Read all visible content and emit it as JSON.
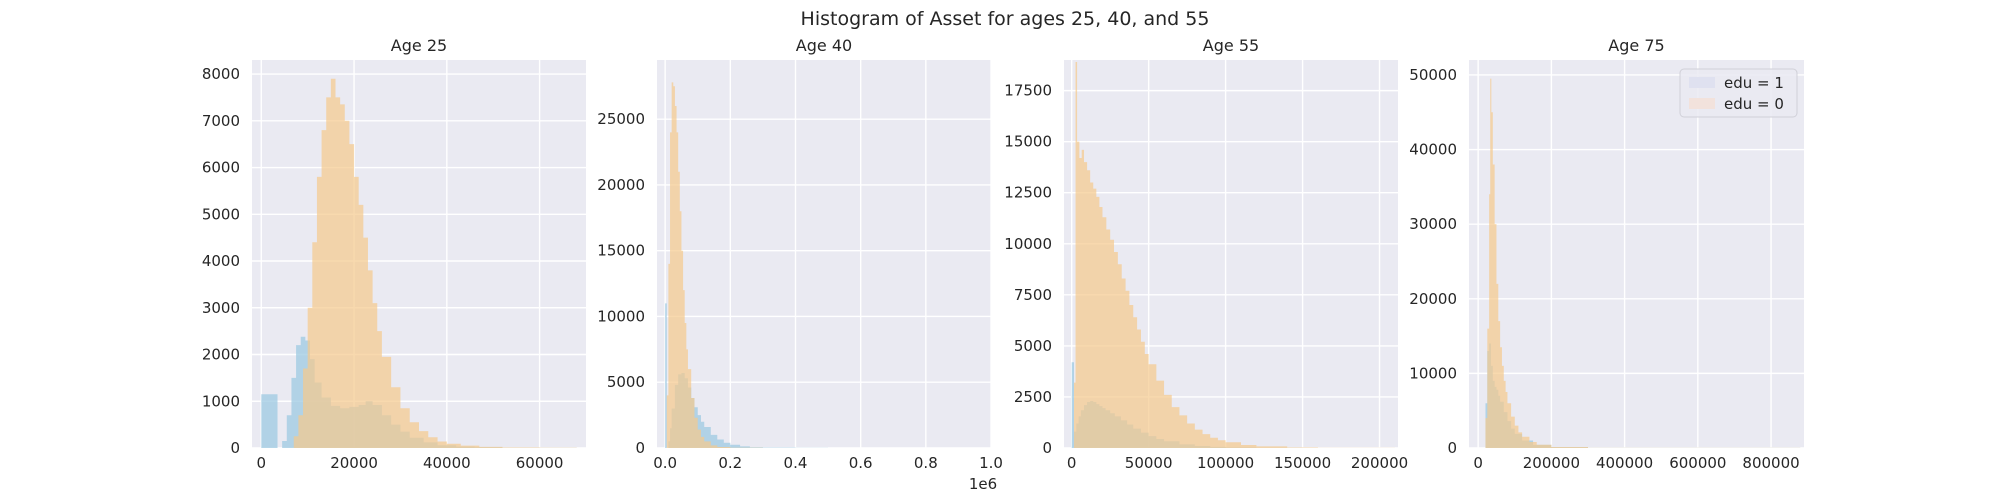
{
  "figure": {
    "title": "Histogram of Asset for ages 25, 40, and 55",
    "colors": {
      "background": "#eaeaf2",
      "grid": "#ffffff",
      "edu1": "#9ecae1",
      "edu0": "#f5c98b",
      "overlap": "#b9b98c",
      "legend_edu1_swatch": "#dfe1f0",
      "legend_edu0_swatch": "#f2e2dc"
    }
  },
  "chart_data": [
    {
      "type": "histogram",
      "title": "Age 25",
      "xlim": [
        -2000,
        70000
      ],
      "ylim": [
        0,
        8300
      ],
      "xticks": [
        0,
        20000,
        40000,
        60000
      ],
      "xtick_labels": [
        "0",
        "20000",
        "40000",
        "60000"
      ],
      "yticks": [
        0,
        1000,
        2000,
        3000,
        4000,
        5000,
        6000,
        7000,
        8000
      ],
      "ytick_labels": [
        "0",
        "1000",
        "2000",
        "3000",
        "4000",
        "5000",
        "6000",
        "7000",
        "8000"
      ],
      "offset_label": "",
      "grid": true,
      "series": [
        {
          "key": "edu1",
          "x": [
            0,
            3500,
            4500,
            5500,
            6500,
            7500,
            8500,
            9500,
            10500,
            11500,
            13000,
            15000,
            17000,
            19000,
            21000,
            22500,
            24000,
            26000,
            28000,
            30000,
            32000,
            35000,
            38000,
            42000,
            46000,
            52000,
            60000,
            68000
          ],
          "y": [
            1150,
            0,
            150,
            700,
            1500,
            2200,
            2380,
            2300,
            1900,
            1400,
            1080,
            900,
            850,
            880,
            920,
            1000,
            920,
            700,
            500,
            350,
            220,
            120,
            60,
            30,
            15,
            5,
            2,
            0
          ]
        },
        {
          "key": "edu0",
          "x": [
            0,
            3500,
            5500,
            7000,
            8000,
            9000,
            10000,
            11000,
            12000,
            13000,
            14000,
            15000,
            16000,
            17000,
            18000,
            19000,
            20000,
            21000,
            22000,
            23000,
            24000,
            25000,
            26000,
            28000,
            30000,
            32000,
            34000,
            36000,
            38000,
            40000,
            43000,
            47000,
            52000,
            60000,
            68000
          ],
          "y": [
            0,
            0,
            0,
            250,
            700,
            1700,
            3000,
            4400,
            5800,
            6800,
            7500,
            7900,
            7500,
            7350,
            7000,
            6500,
            5800,
            5200,
            4500,
            3800,
            3100,
            2500,
            1950,
            1300,
            850,
            550,
            360,
            230,
            140,
            90,
            50,
            25,
            12,
            4,
            0
          ]
        }
      ]
    },
    {
      "type": "histogram",
      "title": "Age 40",
      "xlim": [
        -0.025,
        1.0
      ],
      "ylim": [
        0,
        29500
      ],
      "xticks": [
        0,
        0.2,
        0.4,
        0.6,
        0.8,
        1.0
      ],
      "xtick_labels": [
        "0.0",
        "0.2",
        "0.4",
        "0.6",
        "0.8",
        "1.0"
      ],
      "yticks": [
        0,
        5000,
        10000,
        15000,
        20000,
        25000
      ],
      "ytick_labels": [
        "0",
        "5000",
        "10000",
        "15000",
        "20000",
        "25000"
      ],
      "offset_label": "1e6",
      "grid": true,
      "series": [
        {
          "key": "edu1",
          "x": [
            0,
            0.005,
            0.01,
            0.015,
            0.02,
            0.03,
            0.04,
            0.05,
            0.06,
            0.07,
            0.08,
            0.09,
            0.1,
            0.11,
            0.12,
            0.14,
            0.16,
            0.18,
            0.2,
            0.23,
            0.26,
            0.3,
            0.4,
            0.5,
            1.0
          ],
          "y": [
            11000,
            0,
            500,
            1500,
            3000,
            4800,
            5600,
            5700,
            5300,
            4600,
            3800,
            3100,
            2500,
            2000,
            1600,
            1000,
            650,
            400,
            250,
            120,
            60,
            25,
            8,
            3,
            0
          ]
        },
        {
          "key": "edu0",
          "x": [
            0,
            0.005,
            0.01,
            0.015,
            0.02,
            0.025,
            0.03,
            0.035,
            0.04,
            0.045,
            0.05,
            0.055,
            0.06,
            0.065,
            0.07,
            0.08,
            0.09,
            0.1,
            0.11,
            0.12,
            0.14,
            0.16,
            0.2,
            0.3,
            1.0
          ],
          "y": [
            0,
            4000,
            14000,
            24000,
            27800,
            27500,
            26000,
            24000,
            21000,
            18000,
            15000,
            12000,
            9500,
            7500,
            6000,
            3800,
            2300,
            1400,
            850,
            500,
            200,
            80,
            20,
            3,
            0
          ]
        }
      ]
    },
    {
      "type": "histogram",
      "title": "Age 55",
      "xlim": [
        -5000,
        212000
      ],
      "ylim": [
        0,
        19000
      ],
      "xticks": [
        0,
        50000,
        100000,
        150000,
        200000
      ],
      "xtick_labels": [
        "0",
        "50000",
        "100000",
        "150000",
        "200000"
      ],
      "yticks": [
        0,
        2500,
        5000,
        7500,
        10000,
        12500,
        15000,
        17500
      ],
      "ytick_labels": [
        "0",
        "2500",
        "5000",
        "7500",
        "10000",
        "12500",
        "15000",
        "17500"
      ],
      "offset_label": "",
      "grid": true,
      "series": [
        {
          "key": "edu1",
          "x": [
            0,
            1500,
            3000,
            4500,
            6000,
            8000,
            10000,
            12000,
            14000,
            16000,
            18000,
            20000,
            22000,
            25000,
            28000,
            32000,
            36000,
            40000,
            45000,
            50000,
            55000,
            60000,
            70000,
            80000,
            90000,
            100000,
            120000,
            150000,
            210000
          ],
          "y": [
            4200,
            800,
            1200,
            1550,
            1850,
            2100,
            2250,
            2300,
            2250,
            2150,
            2050,
            1950,
            1850,
            1700,
            1550,
            1350,
            1150,
            950,
            750,
            580,
            440,
            330,
            180,
            100,
            55,
            30,
            10,
            3,
            0
          ]
        },
        {
          "key": "edu0",
          "x": [
            0,
            1500,
            2500,
            3500,
            5000,
            6500,
            8000,
            10000,
            12000,
            14000,
            16000,
            18000,
            20000,
            22500,
            25000,
            27500,
            30000,
            32500,
            35000,
            37500,
            40000,
            42500,
            45000,
            47500,
            50000,
            55000,
            60000,
            65000,
            70000,
            75000,
            80000,
            85000,
            90000,
            95000,
            100000,
            110000,
            120000,
            140000,
            160000,
            210000
          ],
          "y": [
            0,
            3200,
            18900,
            15000,
            14200,
            14600,
            14000,
            13600,
            13000,
            12700,
            12300,
            11800,
            11300,
            10700,
            10200,
            9600,
            9000,
            8300,
            7700,
            7000,
            6400,
            5800,
            5200,
            4600,
            4100,
            3300,
            2600,
            2000,
            1600,
            1200,
            900,
            680,
            500,
            380,
            280,
            150,
            80,
            25,
            8,
            0
          ]
        }
      ]
    },
    {
      "type": "histogram",
      "title": "Age 75",
      "xlim": [
        -25000,
        890000
      ],
      "ylim": [
        0,
        52000
      ],
      "xticks": [
        0,
        200000,
        400000,
        600000,
        800000
      ],
      "xtick_labels": [
        "0",
        "200000",
        "400000",
        "600000",
        "800000"
      ],
      "yticks": [
        0,
        10000,
        20000,
        30000,
        40000,
        50000
      ],
      "ytick_labels": [
        "0",
        "10000",
        "20000",
        "30000",
        "40000",
        "50000"
      ],
      "offset_label": "",
      "grid": true,
      "legend": {
        "position": "upper right",
        "entries": [
          {
            "label": "edu = 1",
            "key": "edu1"
          },
          {
            "label": "edu = 0",
            "key": "edu0"
          }
        ]
      },
      "series": [
        {
          "key": "edu1",
          "x": [
            0,
            15000,
            20000,
            25000,
            30000,
            35000,
            40000,
            45000,
            50000,
            55000,
            60000,
            70000,
            80000,
            90000,
            100000,
            120000,
            150000,
            200000,
            300000,
            880000
          ],
          "y": [
            0,
            0,
            6000,
            13000,
            14000,
            11000,
            9000,
            8200,
            7800,
            7000,
            6200,
            4800,
            3600,
            2600,
            1900,
            1000,
            420,
            120,
            20,
            0
          ]
        },
        {
          "key": "edu0",
          "x": [
            0,
            15000,
            20000,
            25000,
            30000,
            33000,
            36000,
            40000,
            45000,
            50000,
            55000,
            60000,
            65000,
            70000,
            75000,
            80000,
            90000,
            100000,
            110000,
            120000,
            140000,
            160000,
            200000,
            300000,
            880000
          ],
          "y": [
            0,
            0,
            4000,
            16000,
            34000,
            49500,
            45000,
            38000,
            30000,
            22000,
            17000,
            13500,
            11000,
            9000,
            7500,
            6000,
            4200,
            3000,
            2100,
            1500,
            800,
            430,
            130,
            20,
            0
          ]
        }
      ]
    }
  ]
}
